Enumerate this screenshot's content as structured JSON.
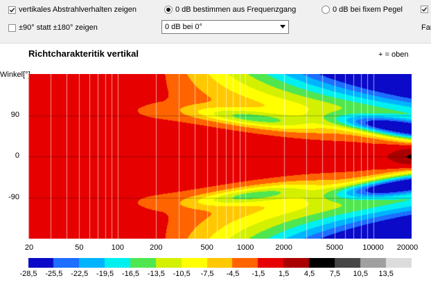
{
  "controls": {
    "vertical_checkbox": {
      "label": "vertikales Abstrahlverhalten zeigen",
      "checked": true
    },
    "range_checkbox": {
      "label": "±90° statt ±180° zeigen",
      "checked": false
    },
    "radio_frequency": {
      "label": "0 dB bestimmen aus Frequenzgang",
      "selected": true
    },
    "radio_fixed": {
      "label": "0 dB bei fixem Pegel",
      "selected": false
    },
    "reference_select": {
      "value": "0 dB bei 0°"
    },
    "clipped_label": "Far"
  },
  "plot": {
    "title": "Richtcharakteritik vertikal",
    "legend_note": "+ = oben",
    "ylabel": "Winkel[°]"
  },
  "chart_data": {
    "type": "heatmap",
    "title": "Richtcharakteritik vertikal",
    "xlabel": "",
    "ylabel": "Winkel[°]",
    "x_scale": "log",
    "xlim": [
      20,
      20000
    ],
    "ylim": [
      -180,
      180
    ],
    "x_ticks": [
      "20",
      "50",
      "100",
      "200",
      "500",
      "1000",
      "2000",
      "5000",
      "10000",
      "20000"
    ],
    "y_ticks": [
      "90",
      "0",
      "-90"
    ],
    "grid": true,
    "colorbar": {
      "ticks": [
        "-28,5",
        "-25,5",
        "-22,5",
        "-19,5",
        "-16,5",
        "-13,5",
        "-10,5",
        "-7,5",
        "-4,5",
        "-1,5",
        "1,5",
        "4,5",
        "7,5",
        "10,5",
        "13,5"
      ],
      "colors": [
        "#0a0ac8",
        "#1e6eff",
        "#00b4ff",
        "#00f0f0",
        "#50e650",
        "#d2f000",
        "#ffff00",
        "#ffc800",
        "#ff6400",
        "#e60000",
        "#aa0000",
        "#000000",
        "#464646",
        "#a0a0a0",
        "#dcdcdc"
      ]
    }
  }
}
